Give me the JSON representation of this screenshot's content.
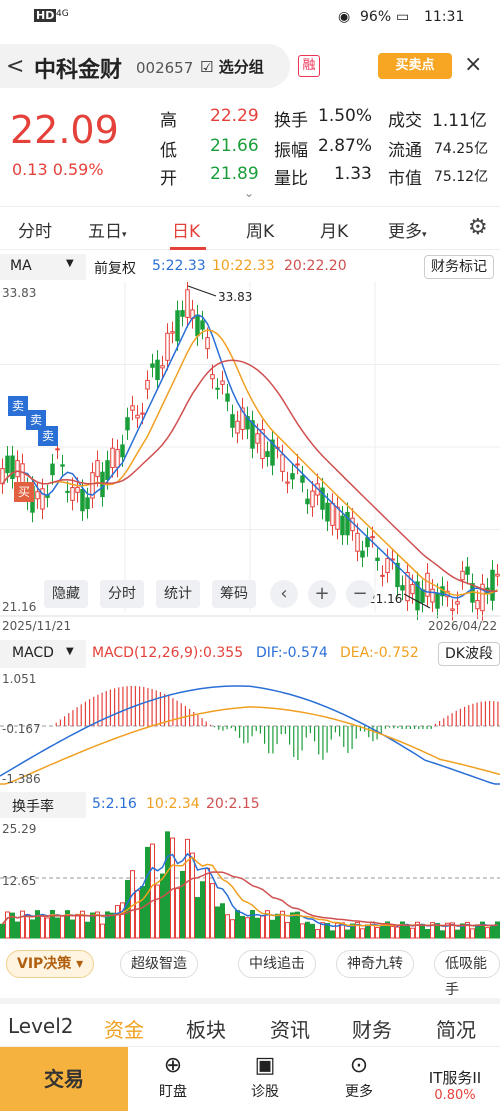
{
  "status_bar": {
    "carrier": "HD",
    "signal": "4G",
    "battery": "96%",
    "time": "11:31"
  },
  "header": {
    "back": "<",
    "title": "中科金财",
    "code": "002657",
    "add_watch": "选分组",
    "rong": "融",
    "buy_sell": "买卖点",
    "close": "×"
  },
  "quote": {
    "price": "22.09",
    "change": "0.13",
    "change_pct": "0.59%",
    "high_label": "高",
    "high": "22.29",
    "low_label": "低",
    "low": "21.66",
    "open_label": "开",
    "open": "21.89",
    "turnover_label": "换手",
    "turnover": "1.50%",
    "amplitude_label": "振幅",
    "amplitude": "2.87%",
    "vol_ratio_label": "量比",
    "vol_ratio": "1.33",
    "deal_label": "成交",
    "deal": "1.11亿",
    "float_label": "流通",
    "float": "74.25亿",
    "mcap_label": "市值",
    "mcap": "75.12亿"
  },
  "tabs": [
    "分时",
    "五日",
    "日K",
    "周K",
    "月K",
    "更多"
  ],
  "ma_bar": {
    "ma": "MA",
    "adjust": "前复权",
    "ma5": "5:22.33",
    "ma10": "10:22.33",
    "ma20": "20:22.20",
    "finance": "财务标记"
  },
  "kline": {
    "high_label": "33.83",
    "low_label": "21.16",
    "axis_top": "33.83",
    "axis_bottom": "21.16",
    "date_start": "2025/11/21",
    "date_end": "2026/04/22",
    "sell1": "卖",
    "sell2": "卖",
    "sell3": "卖",
    "buy": "买"
  },
  "chart_buttons": [
    "隐藏",
    "分时",
    "统计",
    "筹码"
  ],
  "macd_bar": {
    "label": "MACD",
    "params": "MACD(12,26,9):0.355",
    "dif": "DIF:-0.574",
    "dea": "DEA:-0.752",
    "dk": "DK波段"
  },
  "macd_axis": {
    "top": "1.051",
    "mid": "-0.167",
    "bottom": "-1.386"
  },
  "turn_bar": {
    "label": "换手率",
    "t5": "5:2.16",
    "t10": "10:2.34",
    "t20": "20:2.15"
  },
  "turn_axis": {
    "top": "25.29",
    "mid": "12.65"
  },
  "vip_row": {
    "vip": "VIP决策",
    "chips": [
      "超级智造",
      "中线追击",
      "神奇九转",
      "低吸能手"
    ]
  },
  "info_tabs": [
    "Level2",
    "资金",
    "板块",
    "资讯",
    "财务",
    "简况"
  ],
  "bottom_nav": {
    "trade": "交易",
    "items": [
      "盯盘",
      "诊股",
      "更多"
    ],
    "it_service": "IT服务II",
    "it_pct": "0.80%"
  },
  "colors": {
    "up": "#e5413b",
    "down": "#1b9e3a",
    "ma5": "#2a6fd6",
    "ma10": "#f0a020",
    "ma20": "#d05050"
  }
}
